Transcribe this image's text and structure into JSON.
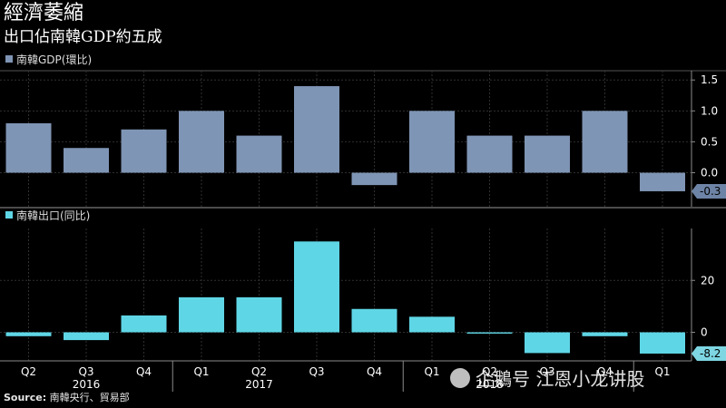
{
  "title": "經濟萎縮",
  "subtitle": "出口佔南韓GDP約五成",
  "colors": {
    "gdp_bar": "#7f95b5",
    "export_bar": "#5fd6e6",
    "grid": "#2f2f2f",
    "axis": "#8a8a8a",
    "last_label_bg": "#6e84a6",
    "last_label_bg2": "#7dd6e2"
  },
  "chart_data": [
    {
      "type": "bar",
      "legend": "南韓GDP(環比)",
      "categories": [
        "2016Q2",
        "2016Q3",
        "2016Q4",
        "2017Q1",
        "2017Q2",
        "2017Q3",
        "2017Q4",
        "2018Q1",
        "2018Q2",
        "2018Q3",
        "2018Q4",
        "2019Q1"
      ],
      "values": [
        0.8,
        0.4,
        0.7,
        1.0,
        0.6,
        1.4,
        -0.2,
        1.0,
        0.6,
        0.6,
        1.0,
        -0.3
      ],
      "ylim": [
        -0.55,
        1.65
      ],
      "yticks": [
        "1.5",
        "1.0",
        "0.5",
        "0.0"
      ],
      "ytick_values": [
        1.5,
        1.0,
        0.5,
        0.0
      ],
      "last_value_label": "-0.3"
    },
    {
      "type": "bar",
      "legend": "南韓出口(同比)",
      "categories": [
        "2016Q2",
        "2016Q3",
        "2016Q4",
        "2017Q1",
        "2017Q2",
        "2017Q3",
        "2017Q4",
        "2018Q1",
        "2018Q2",
        "2018Q3",
        "2018Q4",
        "2019Q1"
      ],
      "values": [
        -1.5,
        -3.0,
        6.5,
        13.5,
        13.5,
        35.0,
        9.0,
        6.0,
        -0.5,
        -8.0,
        -1.5,
        -8.2
      ],
      "ylim": [
        -11,
        40
      ],
      "yticks": [
        "20",
        "0"
      ],
      "ytick_values": [
        20,
        0
      ],
      "last_value_label": "-8.2"
    }
  ],
  "x_axis": {
    "quarters": [
      "Q2",
      "Q3",
      "Q4",
      "Q1",
      "Q2",
      "Q3",
      "Q4",
      "Q1",
      "Q2",
      "Q3",
      "Q4",
      "Q1"
    ],
    "years": [
      {
        "label": "2016",
        "index": 1
      },
      {
        "label": "2017",
        "index": 4
      },
      {
        "label": "2018",
        "index": 8
      }
    ]
  },
  "source": {
    "label": "Source:",
    "text": "南韓央行、貿易部"
  },
  "watermark": "企鵝号 江恩小龙讲股"
}
